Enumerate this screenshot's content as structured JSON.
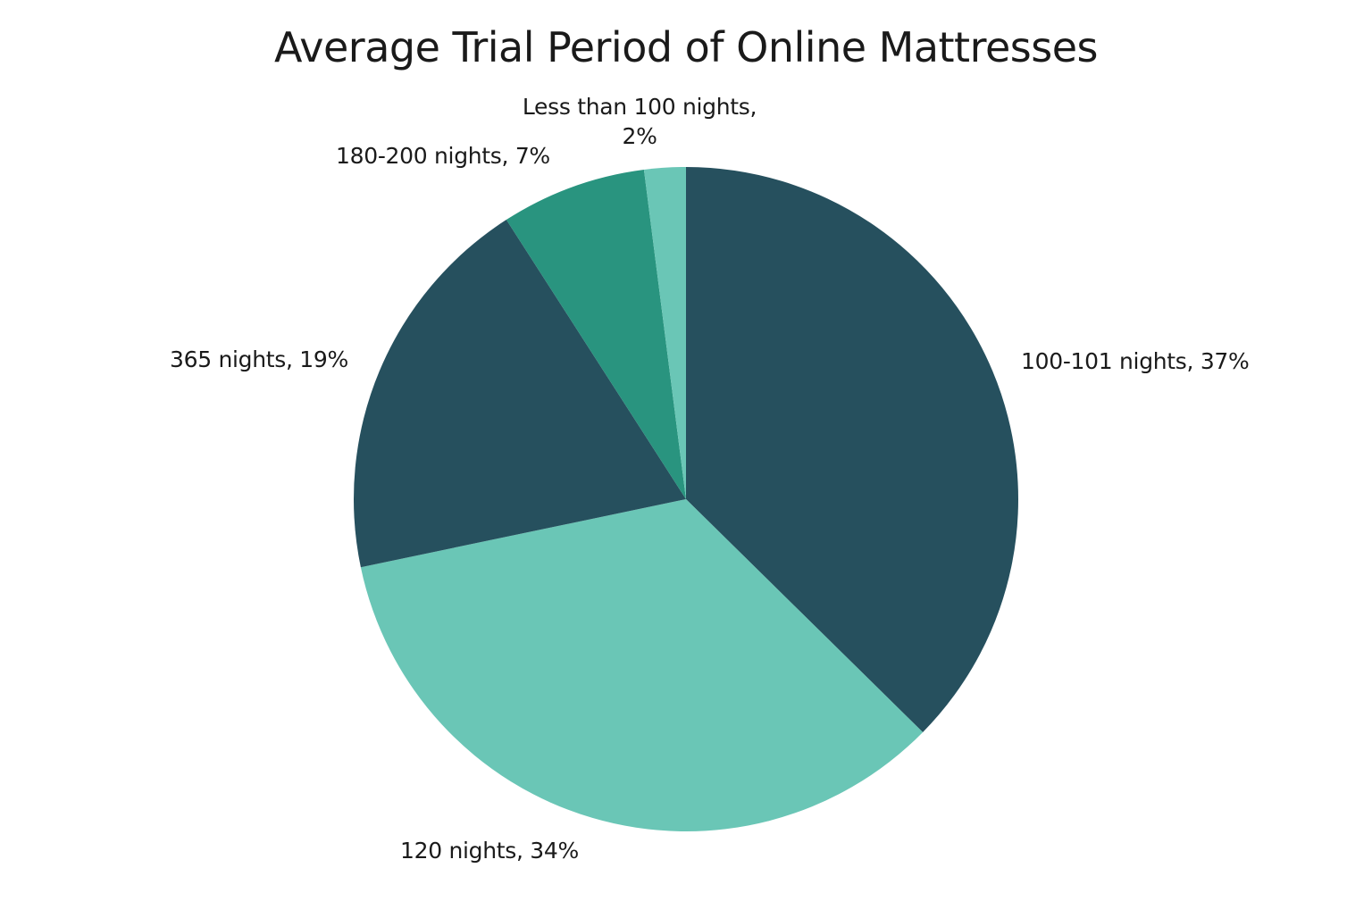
{
  "chart_data": {
    "type": "pie",
    "title": "Average Trial Period of Online Mattresses",
    "start_angle": "12 o'clock, clockwise",
    "slices": [
      {
        "label": "100-101 nights",
        "value": 37,
        "color": "#26505e",
        "data_label": "100-101 nights, 37%"
      },
      {
        "label": "120 nights",
        "value": 34,
        "color": "#6ac6b6",
        "data_label": "120 nights, 34%"
      },
      {
        "label": "365 nights",
        "value": 19,
        "color": "#26505e",
        "data_label": "365 nights, 19%"
      },
      {
        "label": "180-200 nights",
        "value": 7,
        "color": "#29947f",
        "data_label": "180-200 nights, 7%"
      },
      {
        "label": "Less than 100 nights",
        "value": 2,
        "color": "#6ac6b6",
        "data_label": "Less than 100 nights, 2%"
      }
    ],
    "categories": [
      "100-101 nights",
      "120 nights",
      "365 nights",
      "180-200 nights",
      "Less than 100 nights"
    ],
    "values": [
      37,
      34,
      19,
      7,
      2
    ],
    "unit": "%",
    "legend": "none (data labels outside slices)"
  },
  "labels": {
    "s0": "100-101 nights, 37%",
    "s1": "120 nights, 34%",
    "s2": "365 nights, 19%",
    "s3": "180-200 nights, 7%",
    "s4_line1": "Less than 100 nights,",
    "s4_line2": "2%"
  }
}
